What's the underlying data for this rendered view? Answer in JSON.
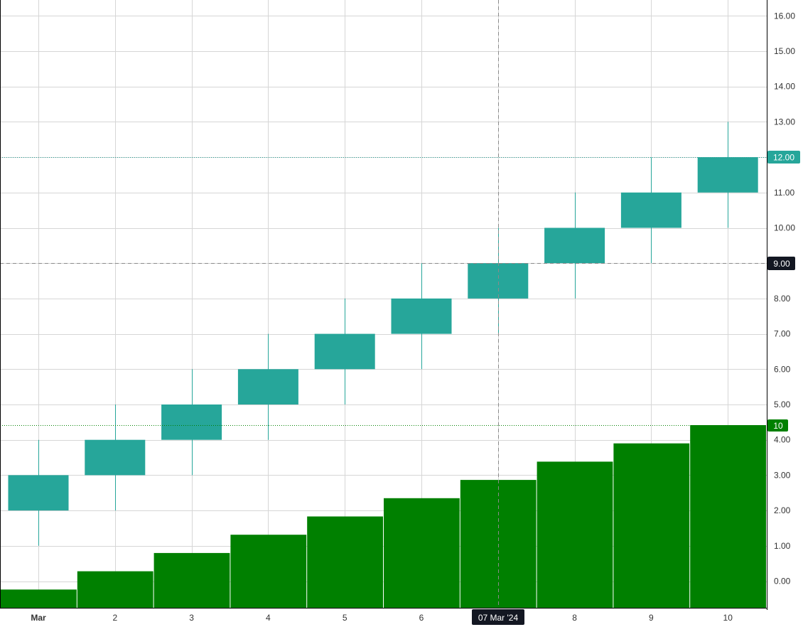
{
  "chart_data": {
    "type": "candlestick",
    "x": [
      "Mar",
      "2",
      "3",
      "4",
      "5",
      "6",
      "7",
      "8",
      "9",
      "10"
    ],
    "ohlc": [
      {
        "open": 2,
        "high": 4,
        "low": 1,
        "close": 3
      },
      {
        "open": 3,
        "high": 5,
        "low": 2,
        "close": 4
      },
      {
        "open": 4,
        "high": 6,
        "low": 3,
        "close": 5
      },
      {
        "open": 5,
        "high": 7,
        "low": 4,
        "close": 6
      },
      {
        "open": 6,
        "high": 8,
        "low": 5,
        "close": 7
      },
      {
        "open": 7,
        "high": 9,
        "low": 6,
        "close": 8
      },
      {
        "open": 8,
        "high": 10,
        "low": 7,
        "close": 9
      },
      {
        "open": 9,
        "high": 11,
        "low": 8,
        "close": 10
      },
      {
        "open": 10,
        "high": 12,
        "low": 9,
        "close": 11
      },
      {
        "open": 11,
        "high": 13,
        "low": 10,
        "close": 12
      }
    ],
    "volume": [
      1,
      2,
      3,
      4,
      5,
      6,
      7,
      8,
      9,
      10
    ],
    "y_ticks": [
      "0.00",
      "1.00",
      "2.00",
      "3.00",
      "4.00",
      "5.00",
      "6.00",
      "7.00",
      "8.00",
      "9.00",
      "10.00",
      "11.00",
      "12.00",
      "13.00",
      "14.00",
      "15.00",
      "16.00"
    ],
    "ylim": [
      -0.3,
      16.6
    ],
    "volume_max": 10,
    "bold_tick": "Mar",
    "grid": true,
    "last_price_label": "12.00",
    "last_price": 12,
    "crosshair": {
      "x_index": 6,
      "x_label": "07 Mar '24",
      "price": 9,
      "price_label": "9.00"
    },
    "volume_label": "10",
    "colors": {
      "candle": "#26a69a",
      "volume": "#008000",
      "grid": "#d6d6d6",
      "crosshair_badge": "#131722",
      "axis": "#000000"
    }
  }
}
